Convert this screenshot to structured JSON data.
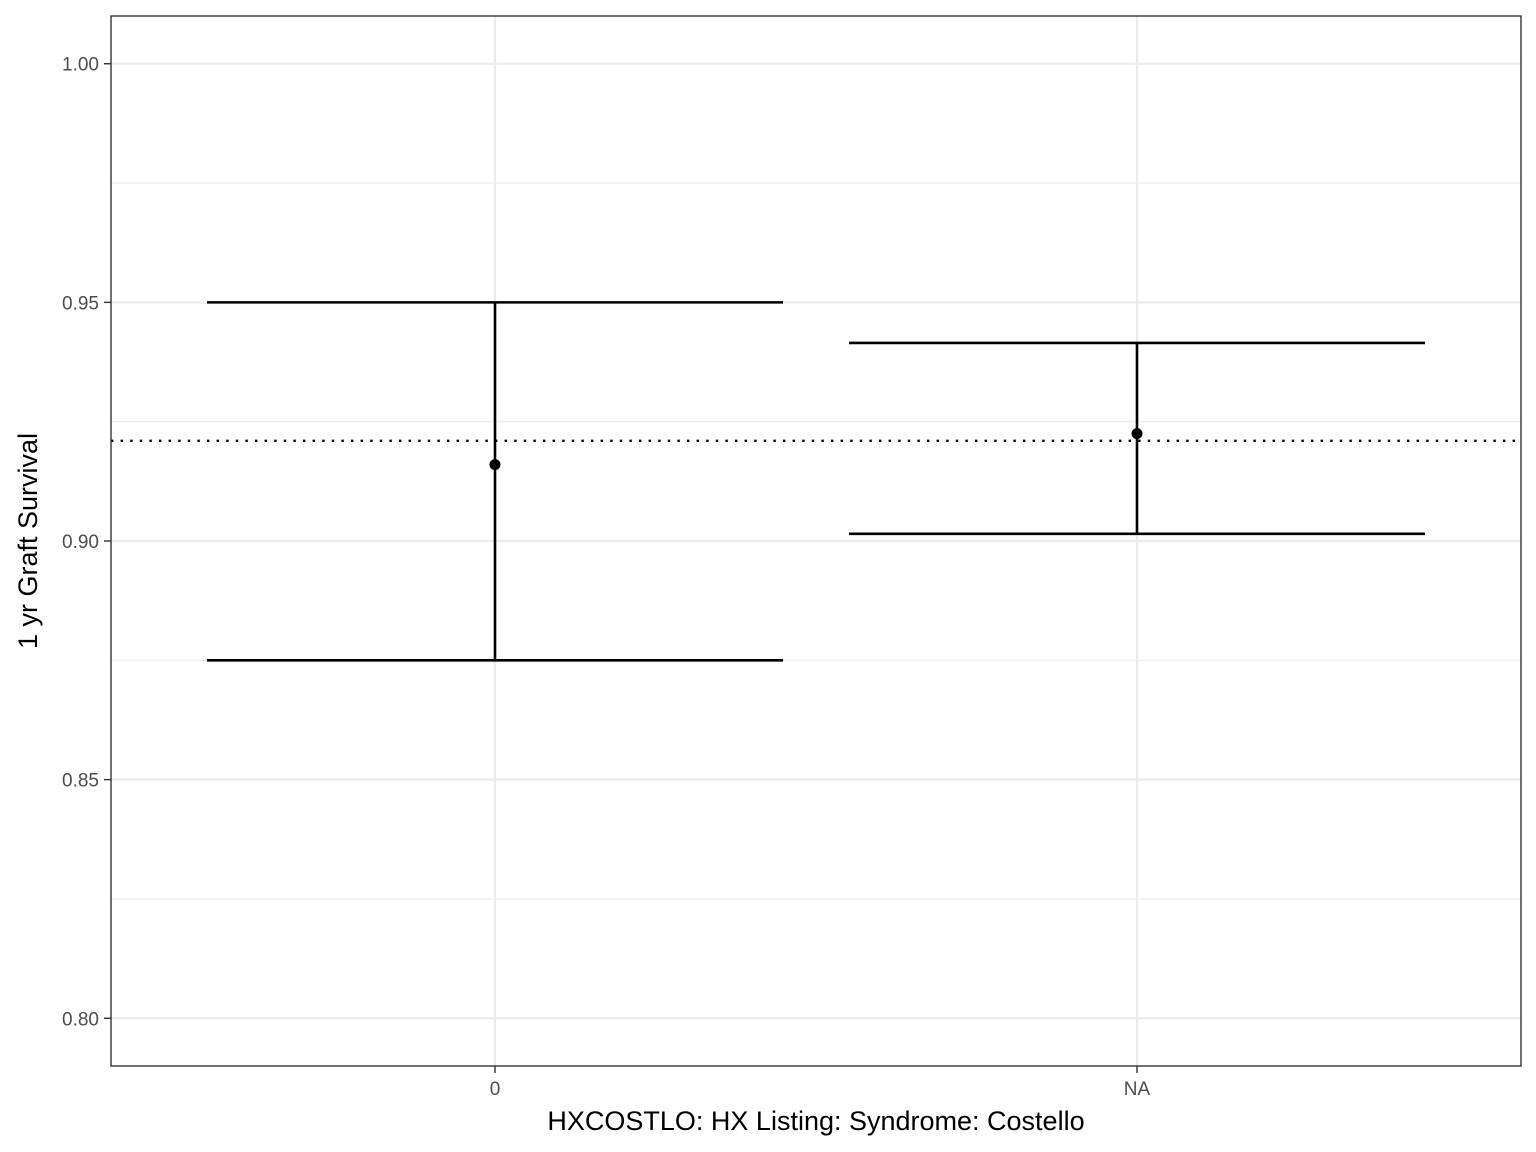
{
  "chart_data": {
    "type": "errorbar",
    "title": "",
    "xlabel": "HXCOSTLO: HX Listing: Syndrome: Costello",
    "ylabel": "1 yr Graft Survival",
    "categories": [
      "0",
      "NA"
    ],
    "points": [
      {
        "category": "0",
        "estimate": 0.916,
        "lower": 0.875,
        "upper": 0.95
      },
      {
        "category": "NA",
        "estimate": 0.9225,
        "lower": 0.9015,
        "upper": 0.9415
      }
    ],
    "reference_line": {
      "value": 0.921,
      "style": "dotted"
    },
    "ylim": [
      0.79,
      1.01
    ],
    "yticks": [
      0.8,
      0.85,
      0.9,
      0.95,
      1.0
    ],
    "ytick_labels": [
      "0.80",
      "0.85",
      "0.90",
      "0.95",
      "1.00"
    ],
    "grid": true,
    "colors": {
      "series": "#000000",
      "grid": "#ebebeb",
      "panel_border": "#333333",
      "tick_text": "#4d4d4d"
    }
  }
}
